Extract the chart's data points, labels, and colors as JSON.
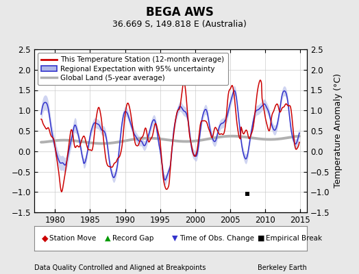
{
  "title": "BEGA AWS",
  "subtitle": "36.669 S, 149.818 E (Australia)",
  "ylabel": "Temperature Anomaly (°C)",
  "xlabel_left": "Data Quality Controlled and Aligned at Breakpoints",
  "xlabel_right": "Berkeley Earth",
  "xlim": [
    1977,
    2016
  ],
  "ylim": [
    -1.5,
    2.5
  ],
  "yticks": [
    -1.5,
    -1.0,
    -0.5,
    0.0,
    0.5,
    1.0,
    1.5,
    2.0,
    2.5
  ],
  "xticks": [
    1980,
    1985,
    1990,
    1995,
    2000,
    2005,
    2010,
    2015
  ],
  "bg_color": "#e8e8e8",
  "plot_bg_color": "#ffffff",
  "grid_color": "#cccccc",
  "red_line_color": "#cc0000",
  "blue_line_color": "#3333cc",
  "blue_fill_color": "#b0b8e8",
  "gray_line_color": "#b0b0b0",
  "empirical_break_x": 2007.5,
  "empirical_break_y": -1.05,
  "legend_fontsize": 7.5,
  "tick_fontsize": 8.5,
  "title_fontsize": 12,
  "subtitle_fontsize": 9
}
